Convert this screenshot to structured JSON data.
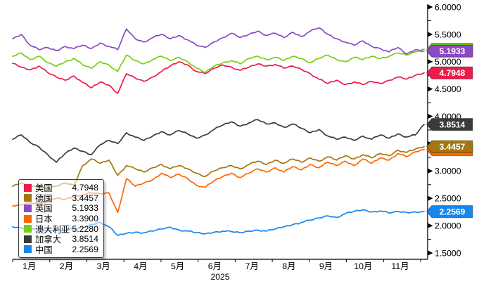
{
  "chart_data": {
    "type": "line",
    "x_axis_year": "2025",
    "x_labels": [
      "1月",
      "2月",
      "3月",
      "4月",
      "5月",
      "6月",
      "7月",
      "8月",
      "9月",
      "10月",
      "11月"
    ],
    "y_ticks": [
      "1.5000",
      "2.0000",
      "2.5000",
      "3.0000",
      "3.5000",
      "4.0000",
      "4.5000",
      "5.0000",
      "5.5000",
      "6.0000"
    ],
    "ylim": [
      1.5,
      6.0
    ],
    "y_minor_step": 0.25,
    "legend_position": "bottom-left",
    "axis_color": "#000000",
    "series": [
      {
        "name": "美国",
        "slug": "usa",
        "value_label": "4.7948",
        "color": "#ee1a49",
        "values": [
          4.97,
          4.9,
          4.85,
          4.92,
          4.8,
          4.72,
          4.66,
          4.74,
          4.62,
          4.52,
          4.63,
          4.57,
          4.42,
          4.78,
          4.7,
          4.64,
          4.72,
          4.82,
          4.92,
          5.0,
          4.94,
          4.82,
          4.78,
          4.88,
          4.94,
          4.9,
          4.84,
          4.9,
          4.96,
          4.92,
          4.95,
          4.88,
          4.92,
          4.86,
          4.78,
          4.68,
          4.6,
          4.66,
          4.58,
          4.63,
          4.58,
          4.64,
          4.6,
          4.66,
          4.72,
          4.68,
          4.75,
          4.7948
        ]
      },
      {
        "name": "德国",
        "slug": "germany",
        "value_label": "3.4457",
        "color": "#a3770e",
        "values": [
          2.72,
          2.78,
          2.7,
          2.74,
          2.68,
          2.72,
          2.78,
          2.74,
          3.1,
          3.22,
          3.14,
          3.2,
          2.92,
          3.1,
          3.04,
          2.98,
          3.06,
          3.12,
          3.04,
          3.1,
          3.04,
          2.96,
          2.9,
          3.0,
          3.06,
          3.1,
          3.04,
          3.12,
          3.18,
          3.12,
          3.2,
          3.14,
          3.22,
          3.16,
          3.24,
          3.18,
          3.26,
          3.2,
          3.28,
          3.22,
          3.3,
          3.24,
          3.32,
          3.28,
          3.38,
          3.34,
          3.4,
          3.4457
        ]
      },
      {
        "name": "英国",
        "slug": "uk",
        "value_label": "5.1933",
        "color": "#8c49c2",
        "values": [
          5.42,
          5.5,
          5.3,
          5.22,
          5.26,
          5.2,
          5.28,
          5.24,
          5.3,
          5.24,
          5.34,
          5.28,
          5.22,
          5.6,
          5.42,
          5.36,
          5.44,
          5.5,
          5.42,
          5.48,
          5.4,
          5.3,
          5.26,
          5.36,
          5.44,
          5.52,
          5.44,
          5.5,
          5.56,
          5.48,
          5.52,
          5.44,
          5.54,
          5.46,
          5.56,
          5.62,
          5.5,
          5.42,
          5.36,
          5.3,
          5.38,
          5.28,
          5.24,
          5.18,
          5.26,
          5.14,
          5.22,
          5.1933
        ]
      },
      {
        "name": "日本",
        "slug": "japan",
        "value_label": "3.3900",
        "color": "#ff6600",
        "values": [
          2.36,
          2.38,
          2.42,
          2.4,
          2.46,
          2.5,
          2.48,
          2.54,
          2.56,
          2.6,
          2.58,
          2.6,
          2.24,
          2.86,
          2.72,
          2.78,
          2.84,
          2.96,
          2.88,
          2.94,
          2.86,
          2.74,
          2.7,
          2.82,
          2.9,
          2.96,
          2.88,
          2.96,
          3.04,
          2.98,
          3.06,
          2.98,
          3.08,
          3.02,
          3.12,
          3.06,
          3.16,
          3.1,
          3.18,
          3.1,
          3.22,
          3.14,
          3.24,
          3.2,
          3.32,
          3.26,
          3.35,
          3.39
        ]
      },
      {
        "name": "澳大利亚",
        "slug": "australia",
        "value_label": "5.2280",
        "color": "#76d013",
        "values": [
          5.1,
          5.16,
          5.04,
          5.1,
          4.98,
          4.92,
          5.0,
          5.06,
          4.94,
          4.88,
          5.0,
          4.94,
          4.82,
          5.12,
          5.02,
          4.96,
          5.04,
          5.1,
          5.02,
          5.08,
          5.0,
          4.88,
          4.8,
          4.92,
          4.98,
          5.02,
          4.96,
          5.06,
          5.1,
          5.04,
          5.08,
          5.02,
          5.1,
          5.06,
          4.98,
          5.06,
          5.12,
          5.04,
          5.0,
          5.08,
          5.04,
          5.1,
          5.06,
          5.1,
          5.16,
          5.12,
          5.18,
          5.228
        ]
      },
      {
        "name": "加拿大",
        "slug": "canada",
        "value_label": "3.8514",
        "color": "#3a3a3a",
        "values": [
          3.58,
          3.66,
          3.52,
          3.44,
          3.3,
          3.16,
          3.32,
          3.42,
          3.36,
          3.3,
          3.48,
          3.56,
          3.5,
          3.7,
          3.62,
          3.56,
          3.64,
          3.72,
          3.66,
          3.74,
          3.68,
          3.6,
          3.66,
          3.76,
          3.84,
          3.9,
          3.82,
          3.88,
          3.94,
          3.86,
          3.88,
          3.8,
          3.86,
          3.78,
          3.7,
          3.76,
          3.64,
          3.58,
          3.62,
          3.56,
          3.64,
          3.58,
          3.66,
          3.6,
          3.68,
          3.62,
          3.66,
          3.8514
        ]
      },
      {
        "name": "中国",
        "slug": "china",
        "value_label": "2.2569",
        "color": "#1886ec",
        "values": [
          1.98,
          1.96,
          1.92,
          1.95,
          1.9,
          1.93,
          1.91,
          1.94,
          1.96,
          2.02,
          2.06,
          1.98,
          1.82,
          1.86,
          1.88,
          1.87,
          1.9,
          1.94,
          1.97,
          1.92,
          1.9,
          1.87,
          1.85,
          1.88,
          1.9,
          1.89,
          1.87,
          1.9,
          1.92,
          1.9,
          1.94,
          1.98,
          2.02,
          2.06,
          2.1,
          2.14,
          2.18,
          2.15,
          2.22,
          2.26,
          2.29,
          2.25,
          2.27,
          2.23,
          2.26,
          2.24,
          2.25,
          2.2569
        ]
      }
    ],
    "legend_order": [
      "usa",
      "germany",
      "uk",
      "japan",
      "australia",
      "canada",
      "china"
    ]
  }
}
